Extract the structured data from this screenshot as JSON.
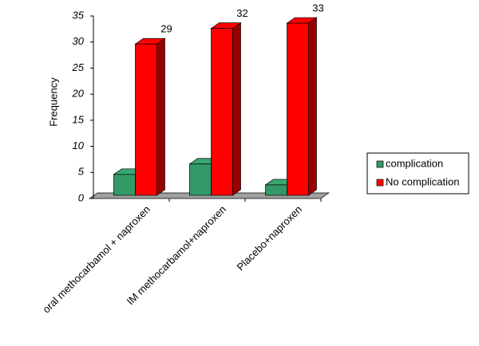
{
  "chart_data": {
    "type": "bar",
    "y_label": "Frequency",
    "categories": [
      "oral methocarbamol + naproxen",
      "IM methocarbamol+naproxen",
      "Placebo+naproxen"
    ],
    "series": [
      {
        "name": "complication",
        "color": "#339966",
        "values": [
          4,
          6,
          2
        ]
      },
      {
        "name": "No complication",
        "color": "#ff0000",
        "values": [
          29,
          32,
          33
        ]
      }
    ],
    "ylim": [
      0,
      35
    ],
    "yticks": [
      0,
      5,
      10,
      15,
      20,
      25,
      30,
      35
    ],
    "legend": "right",
    "three_d": true
  }
}
